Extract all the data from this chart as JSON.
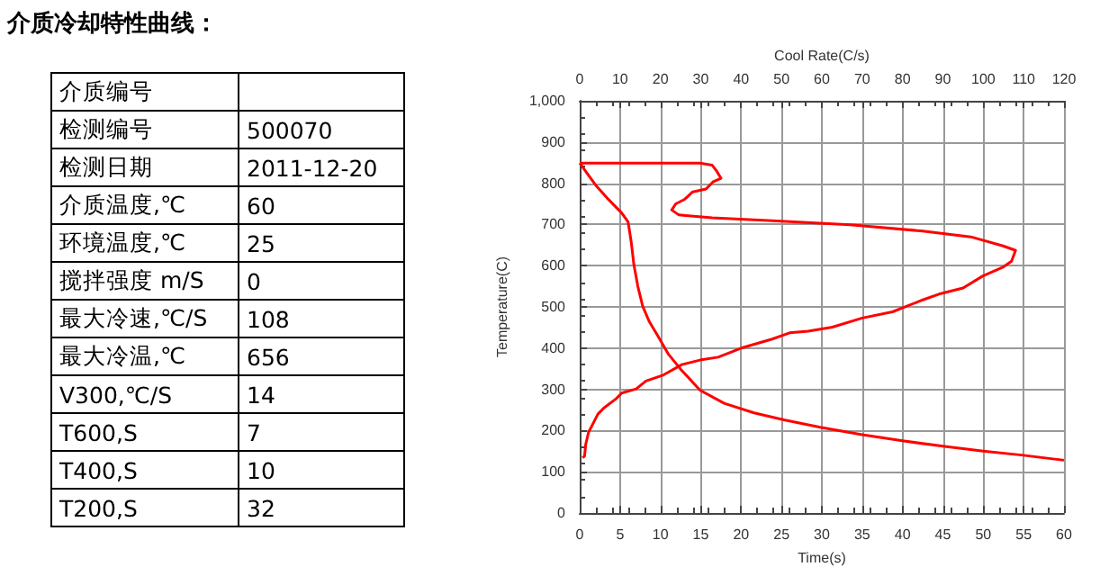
{
  "chart_data": [
    {
      "type": "other",
      "title": "介质冷却特性曲线：",
      "categories": [
        "介质编号",
        "检测编号",
        "检测日期",
        "介质温度,℃",
        "环境温度,℃",
        "搅拌强度 m/S",
        "最大冷速,℃/S",
        "最大冷温,℃",
        "V300,℃/S",
        "T600,S",
        "T400,S",
        "T200,S"
      ],
      "value_labels": [
        null,
        "500070",
        "2011-12-20",
        "60",
        "25",
        "0",
        "108",
        "656",
        "14",
        "7",
        "10",
        "32"
      ]
    },
    {
      "type": "line",
      "xlabel": "Time(s)",
      "x2label": "Cool Rate(C/s)",
      "ylabel": "Temperature(C)",
      "xlim": [
        0,
        60
      ],
      "xticks": [
        0,
        5,
        10,
        15,
        20,
        25,
        30,
        35,
        40,
        45,
        50,
        55,
        60
      ],
      "x2lim": [
        0,
        120
      ],
      "x2ticks": [
        0,
        10,
        20,
        30,
        40,
        50,
        60,
        70,
        80,
        90,
        100,
        110,
        120
      ],
      "ylim": [
        0,
        1000
      ],
      "yticks": [
        0,
        100,
        200,
        300,
        400,
        500,
        600,
        700,
        800,
        900,
        {
          "value": 1000,
          "label": "1,000"
        }
      ],
      "grid": true,
      "marker": "none",
      "line_style": "solid",
      "series": [
        {
          "color": "#ff0000",
          "x": [
            0,
            1,
            2,
            3.4,
            5.2,
            6,
            6.4,
            6.7,
            7.2,
            7.8,
            8.6,
            9.7,
            11,
            12.5,
            14.9,
            17.9,
            21.6,
            25.3,
            29.8,
            35,
            40,
            45,
            50,
            55,
            60
          ],
          "values": [
            849,
            822,
            795,
            764,
            728,
            706,
            655,
            604,
            550,
            502,
            465,
            429,
            385,
            349,
            298,
            266,
            243,
            226,
            208,
            190,
            175,
            162,
            150,
            140,
            128
          ]
        },
        {
          "color": "#ff0000",
          "axis": "x2",
          "x": [
            0,
            29.8,
            32.8,
            33.9,
            35,
            33,
            31.3,
            28,
            26,
            23.8,
            22.8,
            24.6,
            32.8,
            47.7,
            67,
            85,
            96.9,
            104.9,
            108,
            107,
            105,
            99.9,
            95,
            89,
            85,
            77.5,
            70,
            62.6,
            56.6,
            52,
            47.7,
            40,
            34.3,
            29.8,
            25.3,
            20.8,
            16.4,
            14,
            10.4,
            9,
            6,
            4.5,
            3,
            2.2,
            1.5,
            1.2,
            0.7
          ],
          "values": [
            849,
            849,
            844,
            830,
            812,
            803,
            786,
            779,
            761,
            750,
            735,
            723,
            716,
            709,
            699,
            684,
            670,
            648,
            637,
            611,
            597,
            575,
            546,
            531,
            517,
            488,
            473,
            451,
            441,
            437,
            422,
            400,
            378,
            371,
            360,
            335,
            320,
            301,
            291,
            277,
            255,
            240,
            211,
            196,
            167,
            138,
            134
          ]
        }
      ]
    }
  ]
}
